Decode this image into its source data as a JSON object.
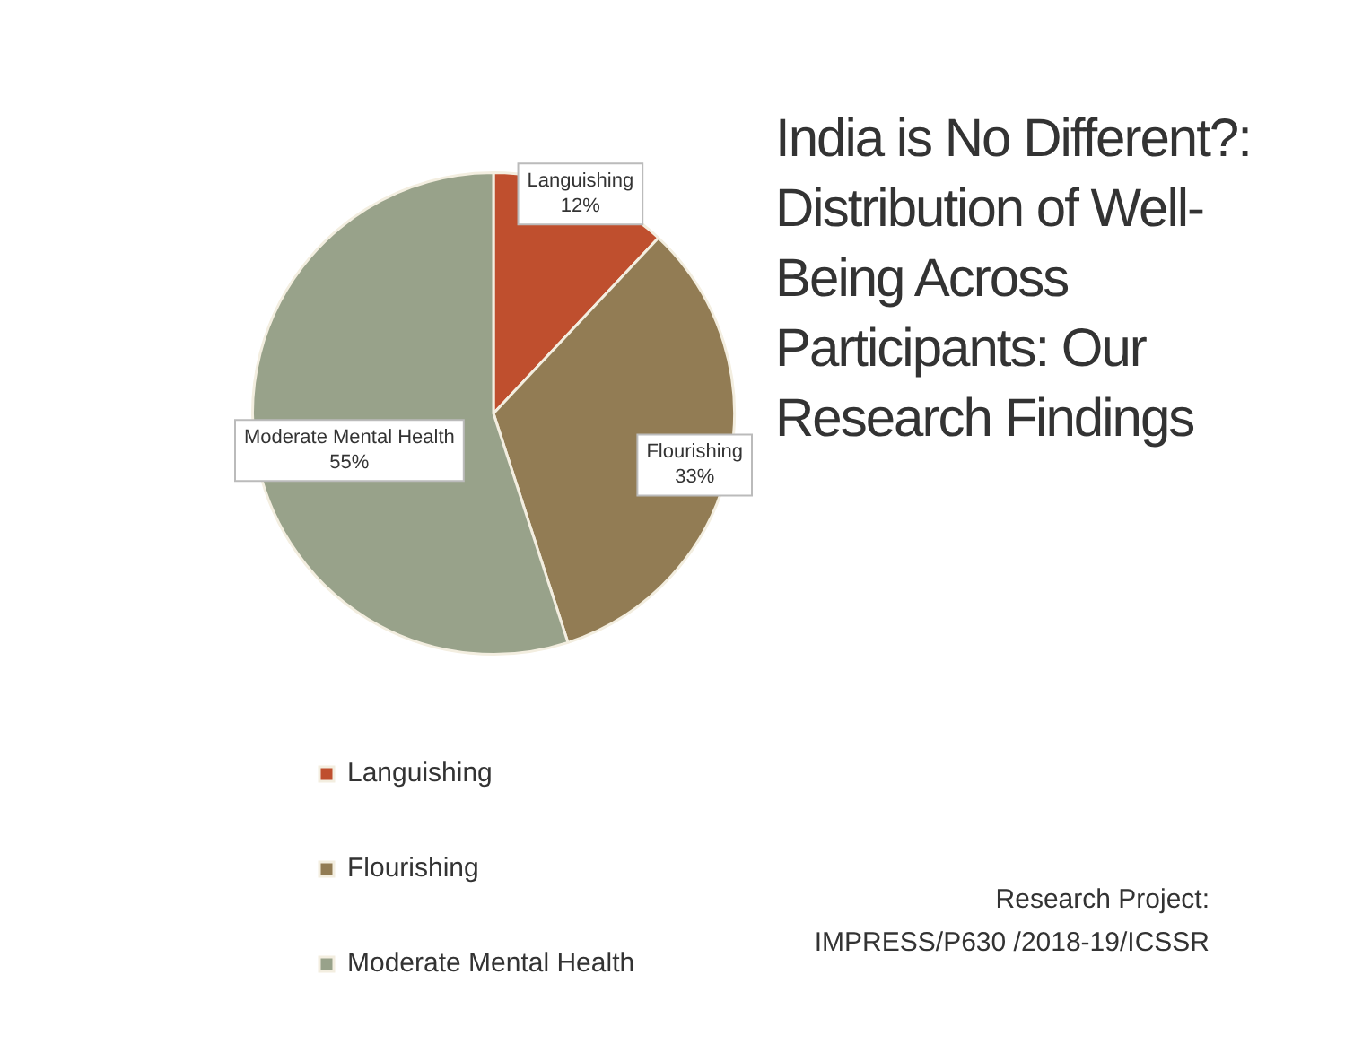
{
  "chart_data": {
    "type": "pie",
    "title": "India is No Different?: Distribution of Well-Being Across Participants: Our Research Findings",
    "categories": [
      "Languishing",
      "Flourishing",
      "Moderate Mental Health"
    ],
    "values": [
      12,
      33,
      55
    ],
    "value_labels": [
      "12%",
      "33%",
      "55%"
    ],
    "colors": [
      "#bf4f2e",
      "#927c54",
      "#98a28a"
    ],
    "legend": "bottom left",
    "annotations": [
      "Research Project:\nIMPRESS/P630 /2018-19/ICSSR"
    ]
  }
}
